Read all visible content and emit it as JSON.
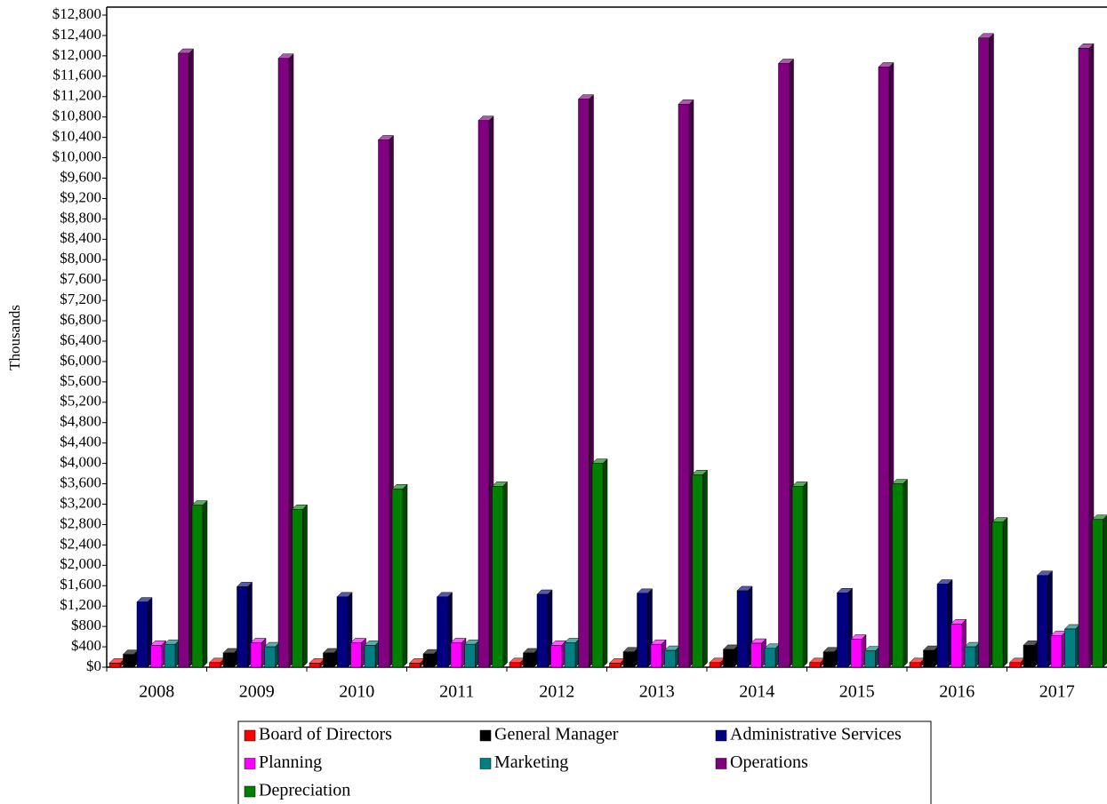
{
  "chart_data": {
    "type": "bar3d",
    "y_label": "Thousands",
    "categories": [
      "2008",
      "2009",
      "2010",
      "2011",
      "2012",
      "2013",
      "2014",
      "2015",
      "2016",
      "2017"
    ],
    "series": [
      {
        "name": "Board of Directors",
        "color": "#ff0000",
        "values": [
          80,
          90,
          80,
          80,
          90,
          80,
          90,
          90,
          90,
          90
        ]
      },
      {
        "name": "General Manager",
        "color": "#000000",
        "values": [
          250,
          280,
          280,
          260,
          280,
          300,
          350,
          300,
          330,
          430
        ]
      },
      {
        "name": "Administrative Services",
        "color": "#000080",
        "values": [
          1280,
          1580,
          1380,
          1380,
          1430,
          1450,
          1500,
          1460,
          1630,
          1800
        ]
      },
      {
        "name": "Planning",
        "color": "#ff00ff",
        "values": [
          430,
          480,
          480,
          480,
          430,
          450,
          470,
          550,
          850,
          620
        ]
      },
      {
        "name": "Marketing",
        "color": "#008080",
        "values": [
          450,
          400,
          430,
          450,
          480,
          330,
          370,
          320,
          400,
          750
        ]
      },
      {
        "name": "Operations",
        "color": "#800080",
        "values": [
          12050,
          11950,
          10350,
          10730,
          11150,
          11050,
          11850,
          11780,
          12350,
          12150
        ]
      },
      {
        "name": "Depreciation",
        "color": "#008000",
        "values": [
          3180,
          3100,
          3500,
          3550,
          4000,
          3780,
          3550,
          3600,
          2850,
          2900
        ]
      }
    ],
    "ylim": [
      0,
      12800
    ],
    "yticks": [
      {
        "value": 0,
        "label": "$0"
      },
      {
        "value": 400,
        "label": "$400"
      },
      {
        "value": 800,
        "label": "$800"
      },
      {
        "value": 1200,
        "label": "$1,200"
      },
      {
        "value": 1600,
        "label": "$1,600"
      },
      {
        "value": 2000,
        "label": "$2,000"
      },
      {
        "value": 2400,
        "label": "$2,400"
      },
      {
        "value": 2800,
        "label": "$2,800"
      },
      {
        "value": 3200,
        "label": "$3,200"
      },
      {
        "value": 3600,
        "label": "$3,600"
      },
      {
        "value": 4000,
        "label": "$4,000"
      },
      {
        "value": 4400,
        "label": "$4,400"
      },
      {
        "value": 4800,
        "label": "$4,800"
      },
      {
        "value": 5200,
        "label": "$5,200"
      },
      {
        "value": 5600,
        "label": "$5,600"
      },
      {
        "value": 6000,
        "label": "$6,000"
      },
      {
        "value": 6400,
        "label": "$6,400"
      },
      {
        "value": 6800,
        "label": "$6,800"
      },
      {
        "value": 7200,
        "label": "$7,200"
      },
      {
        "value": 7600,
        "label": "$7,600"
      },
      {
        "value": 8000,
        "label": "$8,000"
      },
      {
        "value": 8400,
        "label": "$8,400"
      },
      {
        "value": 8800,
        "label": "$8,800"
      },
      {
        "value": 9200,
        "label": "$9,200"
      },
      {
        "value": 9600,
        "label": "$9,600"
      },
      {
        "value": 10000,
        "label": "$10,000"
      },
      {
        "value": 10400,
        "label": "$10,400"
      },
      {
        "value": 10800,
        "label": "$10,800"
      },
      {
        "value": 11200,
        "label": "$11,200"
      },
      {
        "value": 11600,
        "label": "$11,600"
      },
      {
        "value": 12000,
        "label": "$12,000"
      },
      {
        "value": 12400,
        "label": "$12,400"
      },
      {
        "value": 12800,
        "label": "$12,800"
      }
    ],
    "legend": "bottom"
  }
}
